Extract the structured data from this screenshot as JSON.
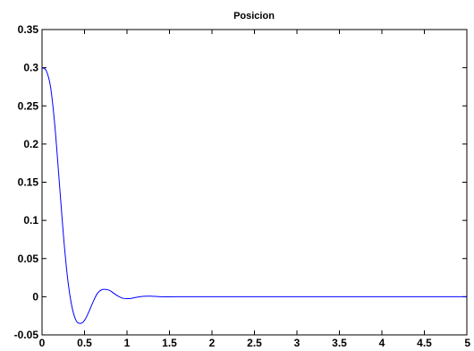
{
  "chart_data": {
    "type": "line",
    "title": "Posicion",
    "xlabel": "",
    "ylabel": "",
    "xlim": [
      0,
      5
    ],
    "ylim": [
      -0.05,
      0.35
    ],
    "grid": false,
    "legend": "none",
    "x_ticks": [
      "0",
      "0.5",
      "1",
      "1.5",
      "2",
      "2.5",
      "3",
      "3.5",
      "4",
      "4.5",
      "5"
    ],
    "y_ticks": [
      "-0.05",
      "0",
      "0.05",
      "0.1",
      "0.15",
      "0.2",
      "0.25",
      "0.3",
      "0.35"
    ],
    "series": [
      {
        "color": "#0000ff",
        "x": [
          0,
          0.05,
          0.1,
          0.15,
          0.2,
          0.25,
          0.3,
          0.35,
          0.4,
          0.45,
          0.5,
          0.55,
          0.6,
          0.65,
          0.7,
          0.75,
          0.8,
          0.85,
          0.9,
          0.95,
          1.0,
          1.05,
          1.1,
          1.15,
          1.2,
          1.25,
          1.3,
          1.35,
          1.4,
          1.45,
          1.5,
          1.6,
          1.7,
          1.8,
          2.0,
          2.5,
          3.0,
          3.5,
          4.0,
          4.5,
          5.0
        ],
        "y": [
          0.3,
          0.296,
          0.275,
          0.225,
          0.155,
          0.083,
          0.025,
          -0.012,
          -0.031,
          -0.035,
          -0.031,
          -0.02,
          -0.007,
          0.004,
          0.009,
          0.0095,
          0.008,
          0.004,
          0.0005,
          -0.002,
          -0.0025,
          -0.0022,
          -0.001,
          0.0,
          0.0006,
          0.0008,
          0.0006,
          0.0003,
          0.0,
          -0.0001,
          -0.0001,
          0.0,
          0.0,
          0.0,
          0.0,
          0.0,
          0.0,
          0.0,
          0.0,
          0.0,
          0.0
        ]
      }
    ]
  }
}
